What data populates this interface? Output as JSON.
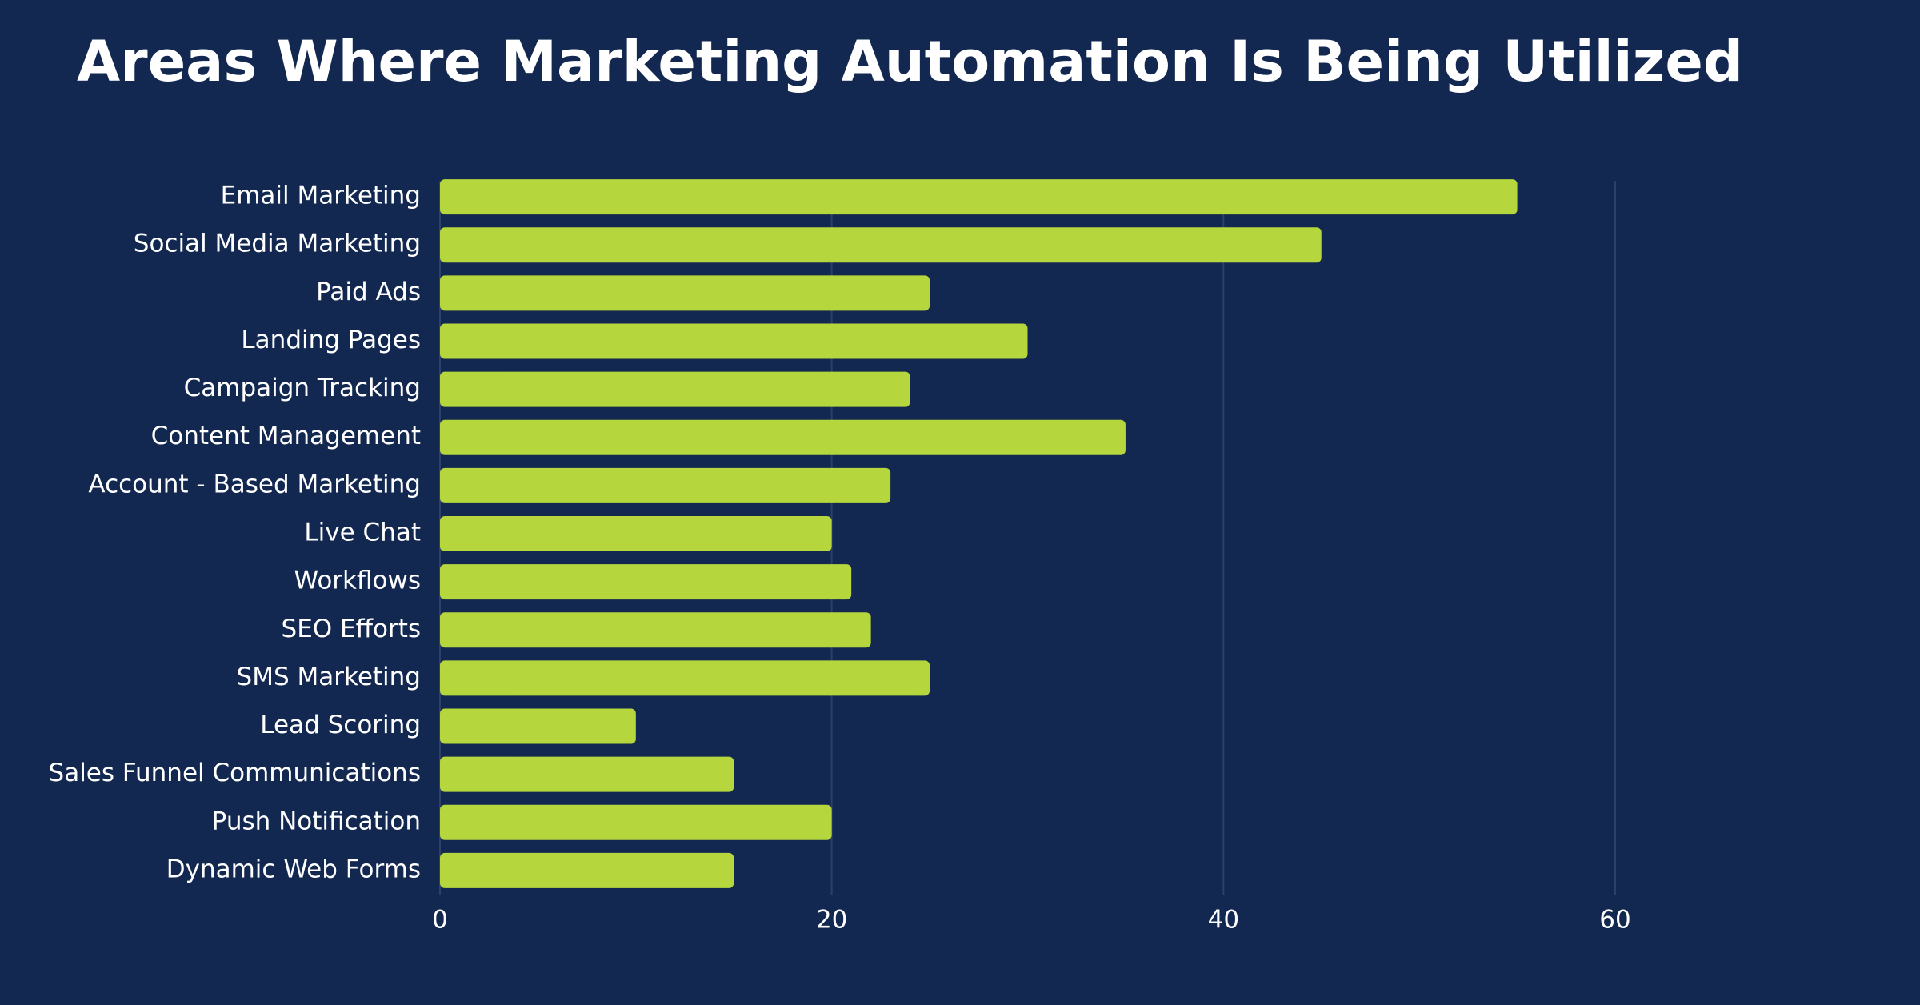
{
  "chart_data": {
    "type": "hbar",
    "title": "Areas Where Marketing Automation Is Being Utilized",
    "categories": [
      "Email Marketing",
      "Social Media Marketing",
      "Paid Ads",
      "Landing Pages",
      "Campaign Tracking",
      "Content Management",
      "Account - Based Marketing",
      "Live Chat",
      "Workflows",
      "SEO Efforts",
      "SMS Marketing",
      "Lead Scoring",
      "Sales Funnel Communications",
      "Push Notification",
      "Dynamic Web Forms"
    ],
    "values": [
      55,
      45,
      25,
      30,
      24,
      35,
      23,
      20,
      21,
      22,
      25,
      10,
      15,
      20,
      15
    ],
    "color": "#b5d63d",
    "xlim": [
      0,
      60
    ],
    "xticks": [
      0,
      20,
      40,
      60
    ],
    "grid": true
  }
}
